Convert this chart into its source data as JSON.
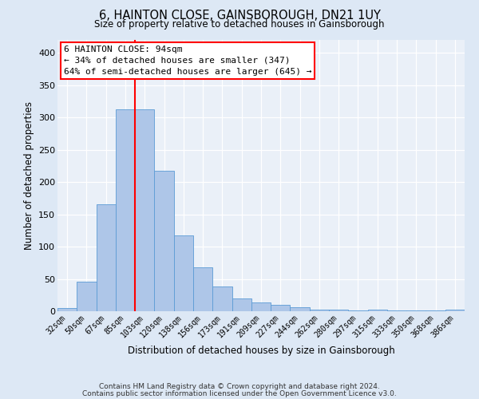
{
  "title": "6, HAINTON CLOSE, GAINSBOROUGH, DN21 1UY",
  "subtitle": "Size of property relative to detached houses in Gainsborough",
  "xlabel": "Distribution of detached houses by size in Gainsborough",
  "ylabel": "Number of detached properties",
  "bins": [
    "32sqm",
    "50sqm",
    "67sqm",
    "85sqm",
    "103sqm",
    "120sqm",
    "138sqm",
    "156sqm",
    "173sqm",
    "191sqm",
    "209sqm",
    "227sqm",
    "244sqm",
    "262sqm",
    "280sqm",
    "297sqm",
    "315sqm",
    "333sqm",
    "350sqm",
    "368sqm",
    "386sqm"
  ],
  "values": [
    5,
    46,
    165,
    313,
    313,
    218,
    117,
    68,
    38,
    20,
    13,
    10,
    6,
    2,
    2,
    1,
    2,
    1,
    1,
    1,
    2
  ],
  "bar_color": "#aec6e8",
  "bar_edge_color": "#5b9bd5",
  "vline_x": 3.5,
  "vline_color": "red",
  "annotation_line1": "6 HAINTON CLOSE: 94sqm",
  "annotation_line2": "← 34% of detached houses are smaller (347)",
  "annotation_line3": "64% of semi-detached houses are larger (645) →",
  "ylim": [
    0,
    420
  ],
  "yticks": [
    0,
    50,
    100,
    150,
    200,
    250,
    300,
    350,
    400
  ],
  "footnote1": "Contains HM Land Registry data © Crown copyright and database right 2024.",
  "footnote2": "Contains public sector information licensed under the Open Government Licence v3.0.",
  "bg_color": "#dde8f5",
  "plot_bg_color": "#eaf0f8"
}
